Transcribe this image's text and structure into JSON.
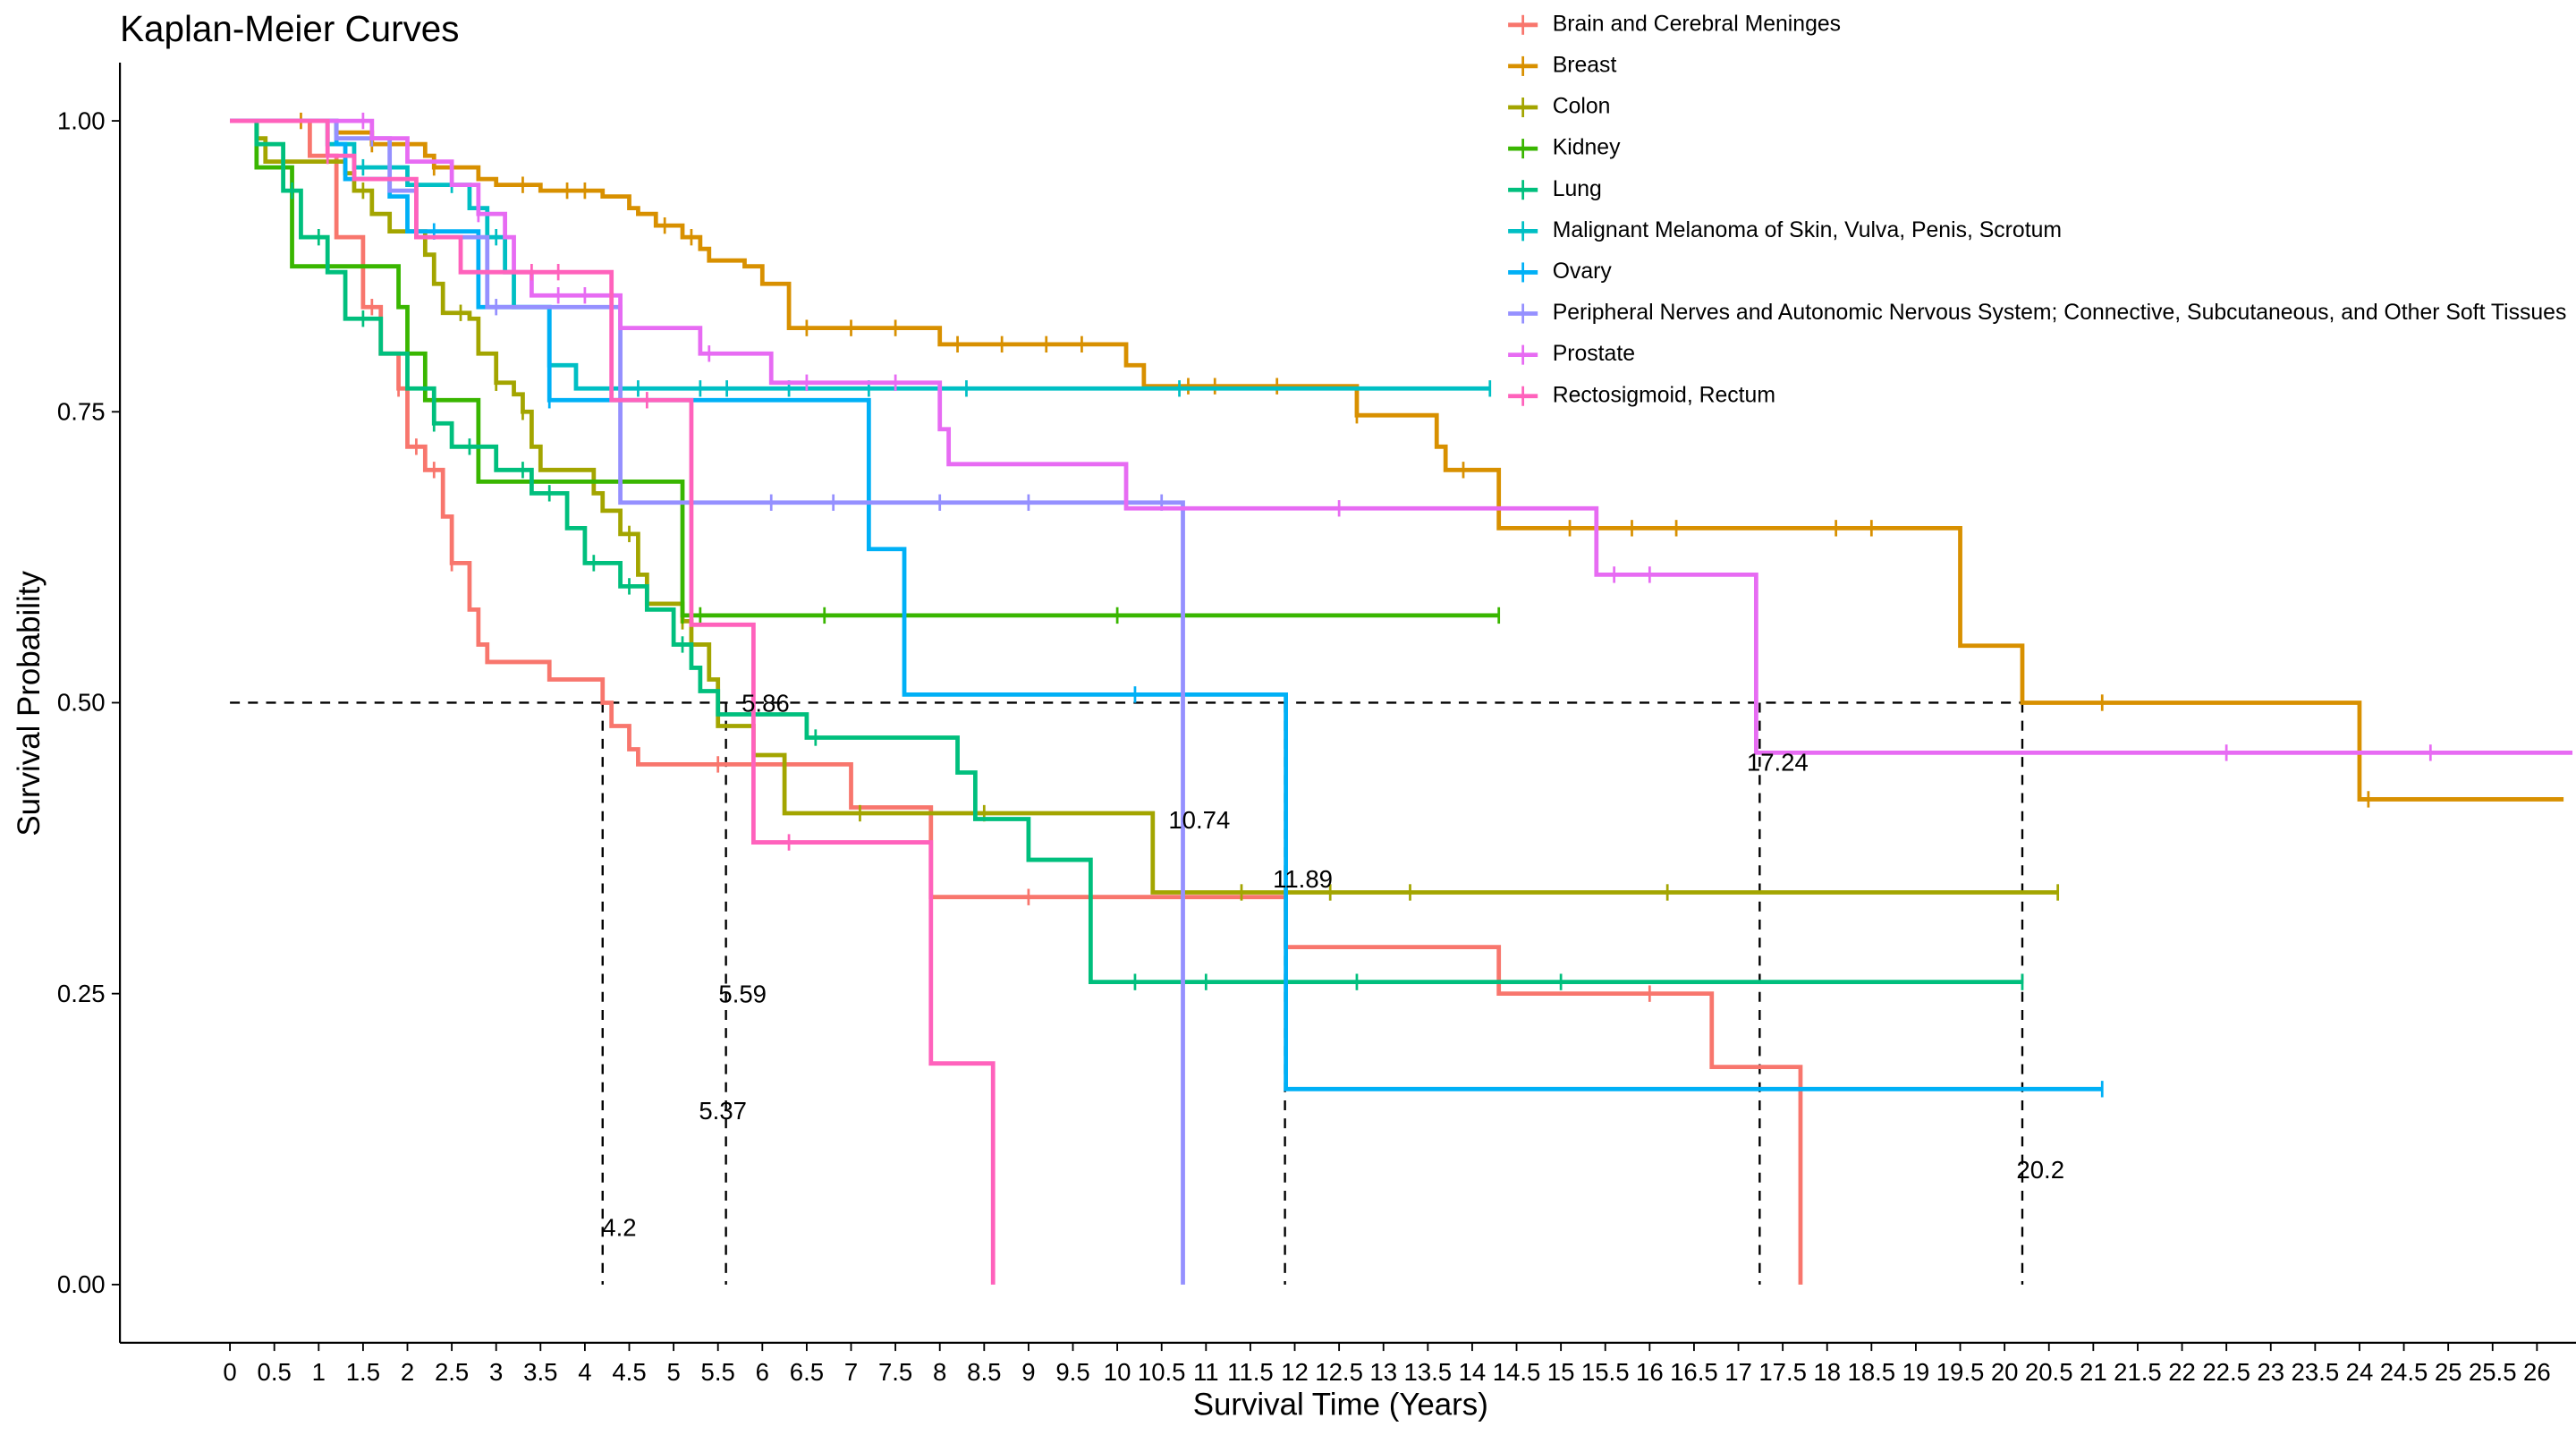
{
  "chart_data": {
    "type": "step",
    "title": "Kaplan-Meier Curves",
    "x_label": "Survival Time (Years)",
    "y_label": "Survival Probability",
    "legend": "top-right",
    "xlim": [
      -1.24,
      26.44
    ],
    "ylim": [
      -0.05,
      1.05
    ],
    "xticks": [
      0,
      0.5,
      1,
      1.5,
      2,
      2.5,
      3,
      3.5,
      4,
      4.5,
      5,
      5.5,
      6,
      6.5,
      7,
      7.5,
      8,
      8.5,
      9,
      9.5,
      10,
      10.5,
      11,
      11.5,
      12,
      12.5,
      13,
      13.5,
      14,
      14.5,
      15,
      15.5,
      16,
      16.5,
      17,
      17.5,
      18,
      18.5,
      19,
      19.5,
      20,
      20.5,
      21,
      21.5,
      22,
      22.5,
      23,
      23.5,
      24,
      24.5,
      25,
      25.5,
      26
    ],
    "yticks": [
      {
        "value": 0,
        "label": "0.00"
      },
      {
        "value": 0.25,
        "label": "0.25"
      },
      {
        "value": 0.5,
        "label": "0.50"
      },
      {
        "value": 0.75,
        "label": "0.75"
      },
      {
        "value": 1,
        "label": "1.00"
      }
    ],
    "reference_y": 0.5,
    "median_lines": [
      4.2,
      5.59,
      11.89,
      17.24,
      20.2
    ],
    "median_labels": [
      {
        "value": 4.2,
        "label": "4.2"
      },
      {
        "value": 5.37,
        "label": "5.37"
      },
      {
        "value": 5.59,
        "label": "5.59"
      },
      {
        "value": 5.86,
        "label": "5.86"
      },
      {
        "value": 10.74,
        "label": "10.74"
      },
      {
        "value": 11.89,
        "label": "11.89"
      },
      {
        "value": 17.24,
        "label": "17.24"
      },
      {
        "value": 20.2,
        "label": "20.2"
      }
    ],
    "series": [
      {
        "name": "Brain and Cerebral Meninges",
        "color": "#F8766D",
        "x": [
          0,
          0.9,
          1.2,
          1.5,
          1.7,
          1.9,
          2.0,
          2.2,
          2.4,
          2.5,
          2.7,
          2.8,
          2.9,
          3.6,
          4.2,
          4.3,
          4.5,
          4.6,
          7.0,
          7.9,
          11.9,
          14.3,
          16.7,
          17.7
        ],
        "values": [
          1,
          0.97,
          0.9,
          0.84,
          0.8,
          0.77,
          0.72,
          0.7,
          0.66,
          0.62,
          0.58,
          0.55,
          0.535,
          0.52,
          0.5,
          0.48,
          0.46,
          0.447,
          0.41,
          0.333,
          0.29,
          0.25,
          0.187,
          0
        ],
        "censored": [
          1.6,
          1.9,
          2.1,
          2.3,
          2.5,
          5.5,
          9.0,
          16.0
        ]
      },
      {
        "name": "Breast",
        "color": "#D89000",
        "x": [
          0,
          1.2,
          1.6,
          2.2,
          2.3,
          2.8,
          3.0,
          3.5,
          4.2,
          4.5,
          4.6,
          4.8,
          5.1,
          5.3,
          5.4,
          5.8,
          6.0,
          6.3,
          8.0,
          10.1,
          10.3,
          12.7,
          13.6,
          13.7,
          14.3,
          19.5,
          20.2,
          24.0,
          26.3
        ],
        "values": [
          1,
          0.99,
          0.98,
          0.97,
          0.96,
          0.95,
          0.945,
          0.94,
          0.935,
          0.925,
          0.92,
          0.91,
          0.9,
          0.89,
          0.88,
          0.875,
          0.86,
          0.822,
          0.808,
          0.79,
          0.772,
          0.747,
          0.72,
          0.7,
          0.65,
          0.549,
          0.5,
          0.417,
          0.417
        ],
        "censored": [
          0.8,
          1.6,
          2.3,
          3.3,
          3.8,
          4.0,
          4.9,
          5.2,
          6.5,
          7.0,
          7.5,
          8.2,
          8.7,
          9.2,
          9.6,
          10.8,
          11.1,
          11.8,
          12.7,
          13.9,
          15.1,
          15.8,
          16.3,
          18.1,
          18.5,
          21.1,
          24.1
        ]
      },
      {
        "name": "Colon",
        "color": "#A3A500",
        "x": [
          0,
          0.3,
          0.4,
          1.3,
          1.4,
          1.6,
          1.8,
          2.2,
          2.3,
          2.4,
          2.7,
          2.8,
          3.0,
          3.2,
          3.3,
          3.4,
          3.5,
          4.1,
          4.2,
          4.4,
          4.6,
          4.7,
          5.1,
          5.2,
          5.4,
          5.5,
          5.9,
          6.25,
          10.4,
          20.6
        ],
        "values": [
          1,
          0.985,
          0.965,
          0.955,
          0.94,
          0.92,
          0.905,
          0.885,
          0.86,
          0.835,
          0.83,
          0.8,
          0.775,
          0.765,
          0.75,
          0.72,
          0.7,
          0.68,
          0.665,
          0.645,
          0.61,
          0.585,
          0.57,
          0.55,
          0.52,
          0.48,
          0.455,
          0.405,
          0.337,
          0.337
        ],
        "censored": [
          0.6,
          1.5,
          2.6,
          3.0,
          3.3,
          4.5,
          5.1,
          7.1,
          8.5,
          11.4,
          12.4,
          13.3,
          16.2,
          20.6
        ]
      },
      {
        "name": "Kidney",
        "color": "#39B600",
        "x": [
          0,
          0.3,
          0.7,
          1.9,
          2.0,
          2.2,
          2.8,
          5.1,
          14.3
        ],
        "values": [
          1,
          0.96,
          0.875,
          0.84,
          0.8,
          0.76,
          0.69,
          0.575,
          0.575
        ],
        "censored": [
          5.1,
          5.3,
          6.7,
          10.0,
          14.3
        ]
      },
      {
        "name": "Lung",
        "color": "#00BF7D",
        "x": [
          0,
          0.3,
          0.6,
          0.8,
          1.1,
          1.3,
          1.7,
          2.0,
          2.3,
          2.5,
          3.0,
          3.4,
          3.8,
          4.0,
          4.4,
          4.7,
          5.0,
          5.2,
          5.3,
          5.5,
          6.5,
          8.2,
          8.4,
          9.0,
          9.7,
          20.2
        ],
        "values": [
          1,
          0.98,
          0.94,
          0.9,
          0.87,
          0.83,
          0.8,
          0.77,
          0.74,
          0.72,
          0.7,
          0.68,
          0.65,
          0.62,
          0.6,
          0.58,
          0.55,
          0.53,
          0.51,
          0.49,
          0.47,
          0.44,
          0.4,
          0.365,
          0.26,
          0.26
        ],
        "censored": [
          0.7,
          1.0,
          1.5,
          2.3,
          2.7,
          3.3,
          3.6,
          4.1,
          4.5,
          5.1,
          6.6,
          10.2,
          11.0,
          12.7,
          15.0,
          20.2
        ]
      },
      {
        "name": "Malignant Melanoma of Skin, Vulva, Penis, Scrotum",
        "color": "#00BFC4",
        "x": [
          0,
          1.1,
          1.4,
          2.0,
          2.7,
          2.9,
          3.1,
          3.2,
          3.6,
          3.9,
          14.2
        ],
        "values": [
          1,
          0.98,
          0.96,
          0.945,
          0.925,
          0.9,
          0.87,
          0.84,
          0.79,
          0.77,
          0.77
        ],
        "censored": [
          1.5,
          2.5,
          3.0,
          4.6,
          5.3,
          5.6,
          6.3,
          7.2,
          8.3,
          10.7,
          14.2
        ]
      },
      {
        "name": "Ovary",
        "color": "#00B0F6",
        "x": [
          0,
          1.2,
          1.3,
          1.8,
          2.0,
          2.8,
          3.6,
          7.2,
          7.6,
          11.9,
          21.1
        ],
        "values": [
          1,
          0.98,
          0.95,
          0.935,
          0.905,
          0.84,
          0.76,
          0.632,
          0.507,
          0.168,
          0.168
        ],
        "censored": [
          2.3,
          3.6,
          10.2,
          21.1
        ]
      },
      {
        "name": "Peripheral Nerves and Autonomic Nervous System; Connective, Subcutaneous, and Other Soft Tissues",
        "color": "#9590FF",
        "x": [
          0,
          1.2,
          1.8,
          2.1,
          2.9,
          4.4,
          10.74
        ],
        "values": [
          1,
          0.985,
          0.94,
          0.9,
          0.84,
          0.672,
          0
        ],
        "censored": [
          1.6,
          3.0,
          6.1,
          6.8,
          8.0,
          9.0,
          10.5
        ]
      },
      {
        "name": "Prostate",
        "color": "#E76BF3",
        "x": [
          0,
          1.6,
          2.0,
          2.5,
          2.8,
          3.1,
          3.2,
          3.4,
          4.4,
          5.3,
          6.1,
          8.0,
          8.1,
          10.1,
          15.4,
          17.2,
          26.4
        ],
        "values": [
          1,
          0.985,
          0.965,
          0.945,
          0.92,
          0.9,
          0.87,
          0.85,
          0.822,
          0.8,
          0.775,
          0.735,
          0.705,
          0.667,
          0.61,
          0.457,
          0.457
        ],
        "censored": [
          1.5,
          2.8,
          3.7,
          4.0,
          5.4,
          6.5,
          7.5,
          12.5,
          15.6,
          16.0,
          22.5,
          24.8
        ]
      },
      {
        "name": "Rectosigmoid, Rectum",
        "color": "#FF62BC",
        "x": [
          0,
          1.1,
          1.4,
          2.1,
          2.6,
          4.3,
          5.2,
          5.9,
          7.9,
          8.6
        ],
        "values": [
          1,
          0.97,
          0.95,
          0.9,
          0.87,
          0.76,
          0.567,
          0.38,
          0.19,
          0
        ],
        "censored": [
          1.1,
          3.4,
          3.7,
          4.7,
          6.3
        ]
      }
    ]
  }
}
